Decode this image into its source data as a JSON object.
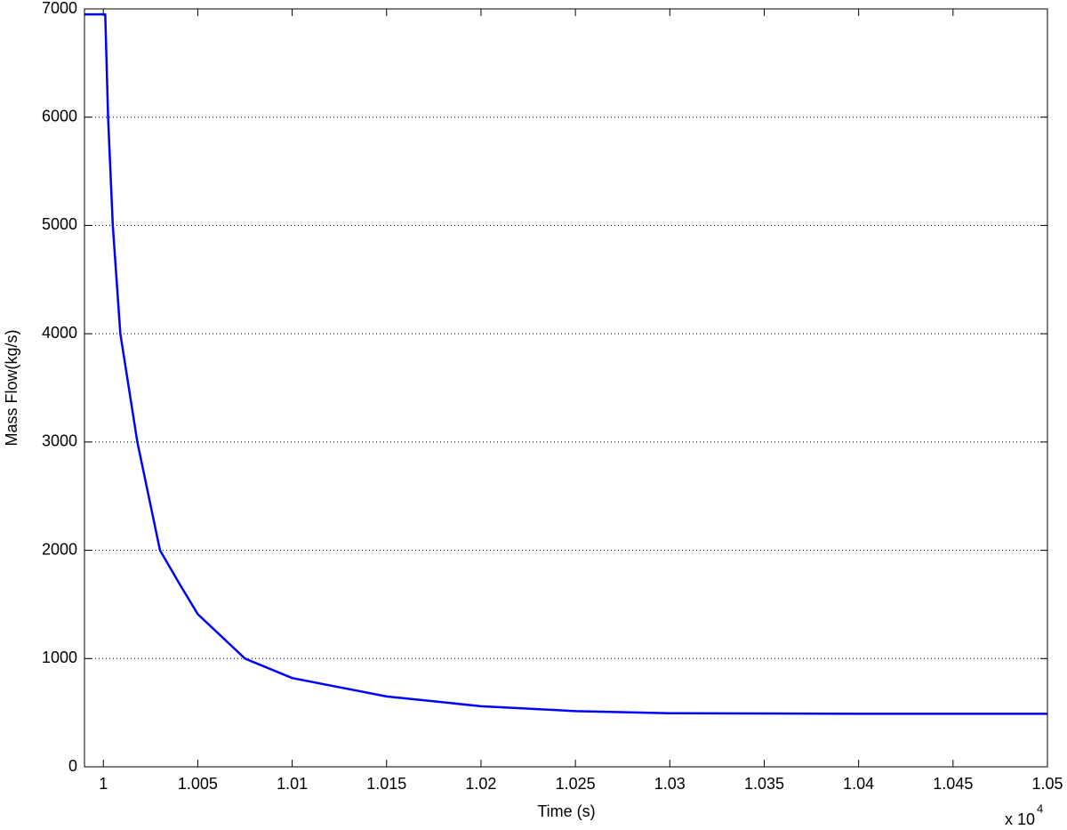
{
  "chart_data": {
    "type": "line",
    "x_label": "Time (s)",
    "y_label": "Mass Flow(kg/s)",
    "x_multiplier": "x 10",
    "x_multiplier_exponent": "4",
    "xlim": [
      0.999,
      1.05
    ],
    "ylim": [
      0,
      7000
    ],
    "xticks": [
      1,
      1.005,
      1.01,
      1.015,
      1.02,
      1.025,
      1.03,
      1.035,
      1.04,
      1.045,
      1.05
    ],
    "yticks": [
      0,
      1000,
      2000,
      3000,
      4000,
      5000,
      6000,
      7000
    ],
    "grid": true,
    "x": [
      0.999,
      1.0,
      1.0001,
      1.00025,
      1.0005,
      1.0009,
      1.0018,
      1.003,
      1.004,
      1.005,
      1.0075,
      1.01,
      1.015,
      1.02,
      1.025,
      1.03,
      1.04,
      1.05
    ],
    "series": [
      {
        "color": "#0000ff",
        "values": [
          6950,
          6950,
          6950,
          6000,
          5000,
          4000,
          3000,
          2000,
          1700,
          1410,
          1000,
          820,
          650,
          560,
          515,
          495,
          490,
          490
        ]
      }
    ]
  }
}
